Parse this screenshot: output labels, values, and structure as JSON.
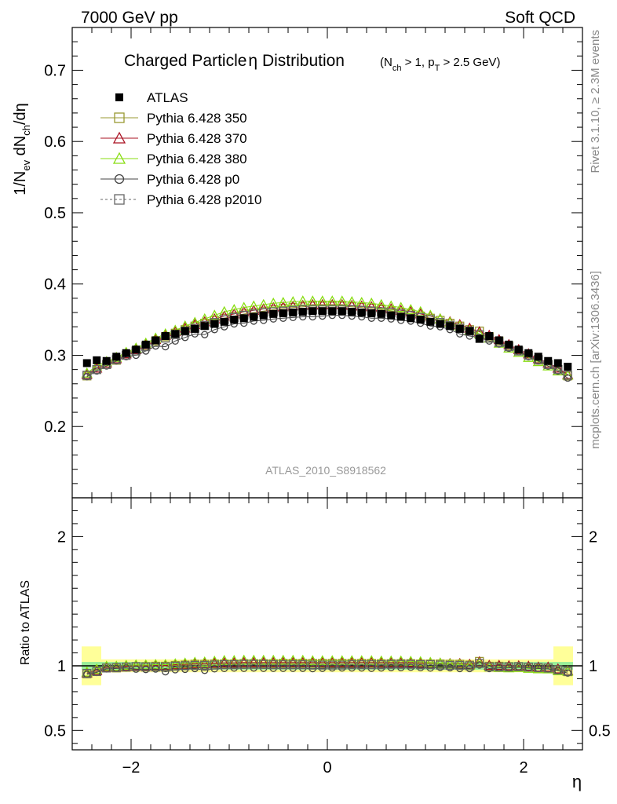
{
  "header": {
    "left": "7000 GeV pp",
    "right": "Soft QCD"
  },
  "side": {
    "rivet": "Rivet 3.1.10, ≥ 2.3M events",
    "mcplots": "mcplots.cern.ch [arXiv:1306.3436]"
  },
  "watermark": "ATLAS_2010_S8918562",
  "chart_data": [
    {
      "type": "scatter",
      "title": "Charged Particle η Distribution",
      "subtitle": "(N_ch > 1, p_T > 2.5 GeV)",
      "ylabel": "1/N_ev dN_ch/dη",
      "xlabel": "η",
      "xlim": [
        -2.6,
        2.6
      ],
      "ylim": [
        0.1,
        0.76
      ],
      "yticks": [
        0.2,
        0.3,
        0.4,
        0.5,
        0.6,
        0.7
      ],
      "xticks": [
        -2,
        0,
        2
      ],
      "legend_position": "top-left",
      "x": [
        -2.45,
        -2.35,
        -2.25,
        -2.15,
        -2.05,
        -1.95,
        -1.85,
        -1.75,
        -1.65,
        -1.55,
        -1.45,
        -1.35,
        -1.25,
        -1.15,
        -1.05,
        -0.95,
        -0.85,
        -0.75,
        -0.65,
        -0.55,
        -0.45,
        -0.35,
        -0.25,
        -0.15,
        -0.05,
        0.05,
        0.15,
        0.25,
        0.35,
        0.45,
        0.55,
        0.65,
        0.75,
        0.85,
        0.95,
        1.05,
        1.15,
        1.25,
        1.35,
        1.45,
        1.55,
        1.65,
        1.75,
        1.85,
        1.95,
        2.05,
        2.15,
        2.25,
        2.35,
        2.45
      ],
      "series": [
        {
          "name": "ATLAS",
          "color": "#000000",
          "marker": "filled-square",
          "values": [
            0.289,
            0.293,
            0.292,
            0.298,
            0.303,
            0.308,
            0.315,
            0.321,
            0.327,
            0.33,
            0.334,
            0.337,
            0.341,
            0.344,
            0.347,
            0.35,
            0.352,
            0.354,
            0.356,
            0.358,
            0.359,
            0.36,
            0.361,
            0.362,
            0.362,
            0.362,
            0.362,
            0.361,
            0.36,
            0.359,
            0.358,
            0.356,
            0.354,
            0.352,
            0.35,
            0.347,
            0.344,
            0.341,
            0.337,
            0.334,
            0.323,
            0.327,
            0.321,
            0.315,
            0.308,
            0.303,
            0.298,
            0.292,
            0.289,
            0.284
          ]
        },
        {
          "name": "Pythia 6.428 350",
          "color": "#999933",
          "marker": "open-square",
          "values": [
            0.271,
            0.28,
            0.287,
            0.293,
            0.3,
            0.306,
            0.313,
            0.32,
            0.326,
            0.331,
            0.336,
            0.341,
            0.345,
            0.349,
            0.352,
            0.355,
            0.358,
            0.36,
            0.362,
            0.364,
            0.366,
            0.367,
            0.368,
            0.369,
            0.369,
            0.369,
            0.369,
            0.368,
            0.367,
            0.366,
            0.364,
            0.362,
            0.36,
            0.358,
            0.355,
            0.352,
            0.349,
            0.345,
            0.341,
            0.336,
            0.334,
            0.326,
            0.32,
            0.313,
            0.306,
            0.3,
            0.293,
            0.287,
            0.28,
            0.271
          ]
        },
        {
          "name": "Pythia 6.428 370",
          "color": "#aa1122",
          "marker": "open-triangle",
          "values": [
            0.273,
            0.282,
            0.289,
            0.295,
            0.302,
            0.308,
            0.315,
            0.322,
            0.328,
            0.333,
            0.338,
            0.343,
            0.347,
            0.351,
            0.355,
            0.358,
            0.361,
            0.363,
            0.365,
            0.367,
            0.368,
            0.369,
            0.37,
            0.371,
            0.371,
            0.371,
            0.371,
            0.37,
            0.369,
            0.368,
            0.367,
            0.365,
            0.363,
            0.361,
            0.358,
            0.355,
            0.351,
            0.347,
            0.343,
            0.338,
            0.333,
            0.328,
            0.322,
            0.315,
            0.308,
            0.302,
            0.295,
            0.289,
            0.282,
            0.273
          ]
        },
        {
          "name": "Pythia 6.428 380",
          "color": "#88dd11",
          "marker": "open-triangle",
          "values": [
            0.275,
            0.285,
            0.291,
            0.297,
            0.304,
            0.31,
            0.317,
            0.324,
            0.33,
            0.335,
            0.341,
            0.346,
            0.351,
            0.356,
            0.361,
            0.364,
            0.367,
            0.369,
            0.371,
            0.373,
            0.374,
            0.375,
            0.376,
            0.376,
            0.376,
            0.376,
            0.376,
            0.375,
            0.374,
            0.373,
            0.371,
            0.369,
            0.367,
            0.364,
            0.361,
            0.356,
            0.351,
            0.346,
            0.341,
            0.335,
            0.33,
            0.324,
            0.317,
            0.31,
            0.304,
            0.297,
            0.291,
            0.285,
            0.278,
            0.272
          ]
        },
        {
          "name": "Pythia 6.428 p0",
          "color": "#444444",
          "marker": "open-circle",
          "values": [
            0.27,
            0.278,
            0.285,
            0.292,
            0.298,
            0.3,
            0.306,
            0.313,
            0.312,
            0.32,
            0.325,
            0.33,
            0.329,
            0.336,
            0.34,
            0.344,
            0.345,
            0.348,
            0.349,
            0.351,
            0.352,
            0.353,
            0.354,
            0.354,
            0.355,
            0.356,
            0.356,
            0.355,
            0.354,
            0.352,
            0.352,
            0.351,
            0.349,
            0.348,
            0.345,
            0.341,
            0.34,
            0.336,
            0.33,
            0.327,
            0.325,
            0.32,
            0.316,
            0.31,
            0.305,
            0.298,
            0.292,
            0.285,
            0.278,
            0.268
          ]
        },
        {
          "name": "Pythia 6.428 p2010",
          "color": "#666666",
          "marker": "open-square-dashed",
          "values": [
            0.272,
            0.28,
            0.287,
            0.294,
            0.3,
            0.306,
            0.312,
            0.318,
            0.324,
            0.329,
            0.334,
            0.338,
            0.342,
            0.346,
            0.35,
            0.353,
            0.356,
            0.358,
            0.36,
            0.361,
            0.362,
            0.363,
            0.364,
            0.364,
            0.364,
            0.364,
            0.364,
            0.364,
            0.363,
            0.362,
            0.361,
            0.36,
            0.358,
            0.356,
            0.353,
            0.35,
            0.346,
            0.342,
            0.338,
            0.334,
            0.329,
            0.324,
            0.318,
            0.312,
            0.306,
            0.3,
            0.294,
            0.287,
            0.28,
            0.272
          ]
        }
      ]
    },
    {
      "type": "scatter",
      "title": "",
      "ylabel": "Ratio to ATLAS",
      "xlabel": "η",
      "xlim": [
        -2.6,
        2.6
      ],
      "ylim": [
        0.35,
        2.3
      ],
      "yticks": [
        0.5,
        1,
        2
      ],
      "xticks": [
        -2,
        0,
        2
      ],
      "reference_line": 1,
      "ratio_series": "Pythia series divided by ATLAS values"
    }
  ]
}
